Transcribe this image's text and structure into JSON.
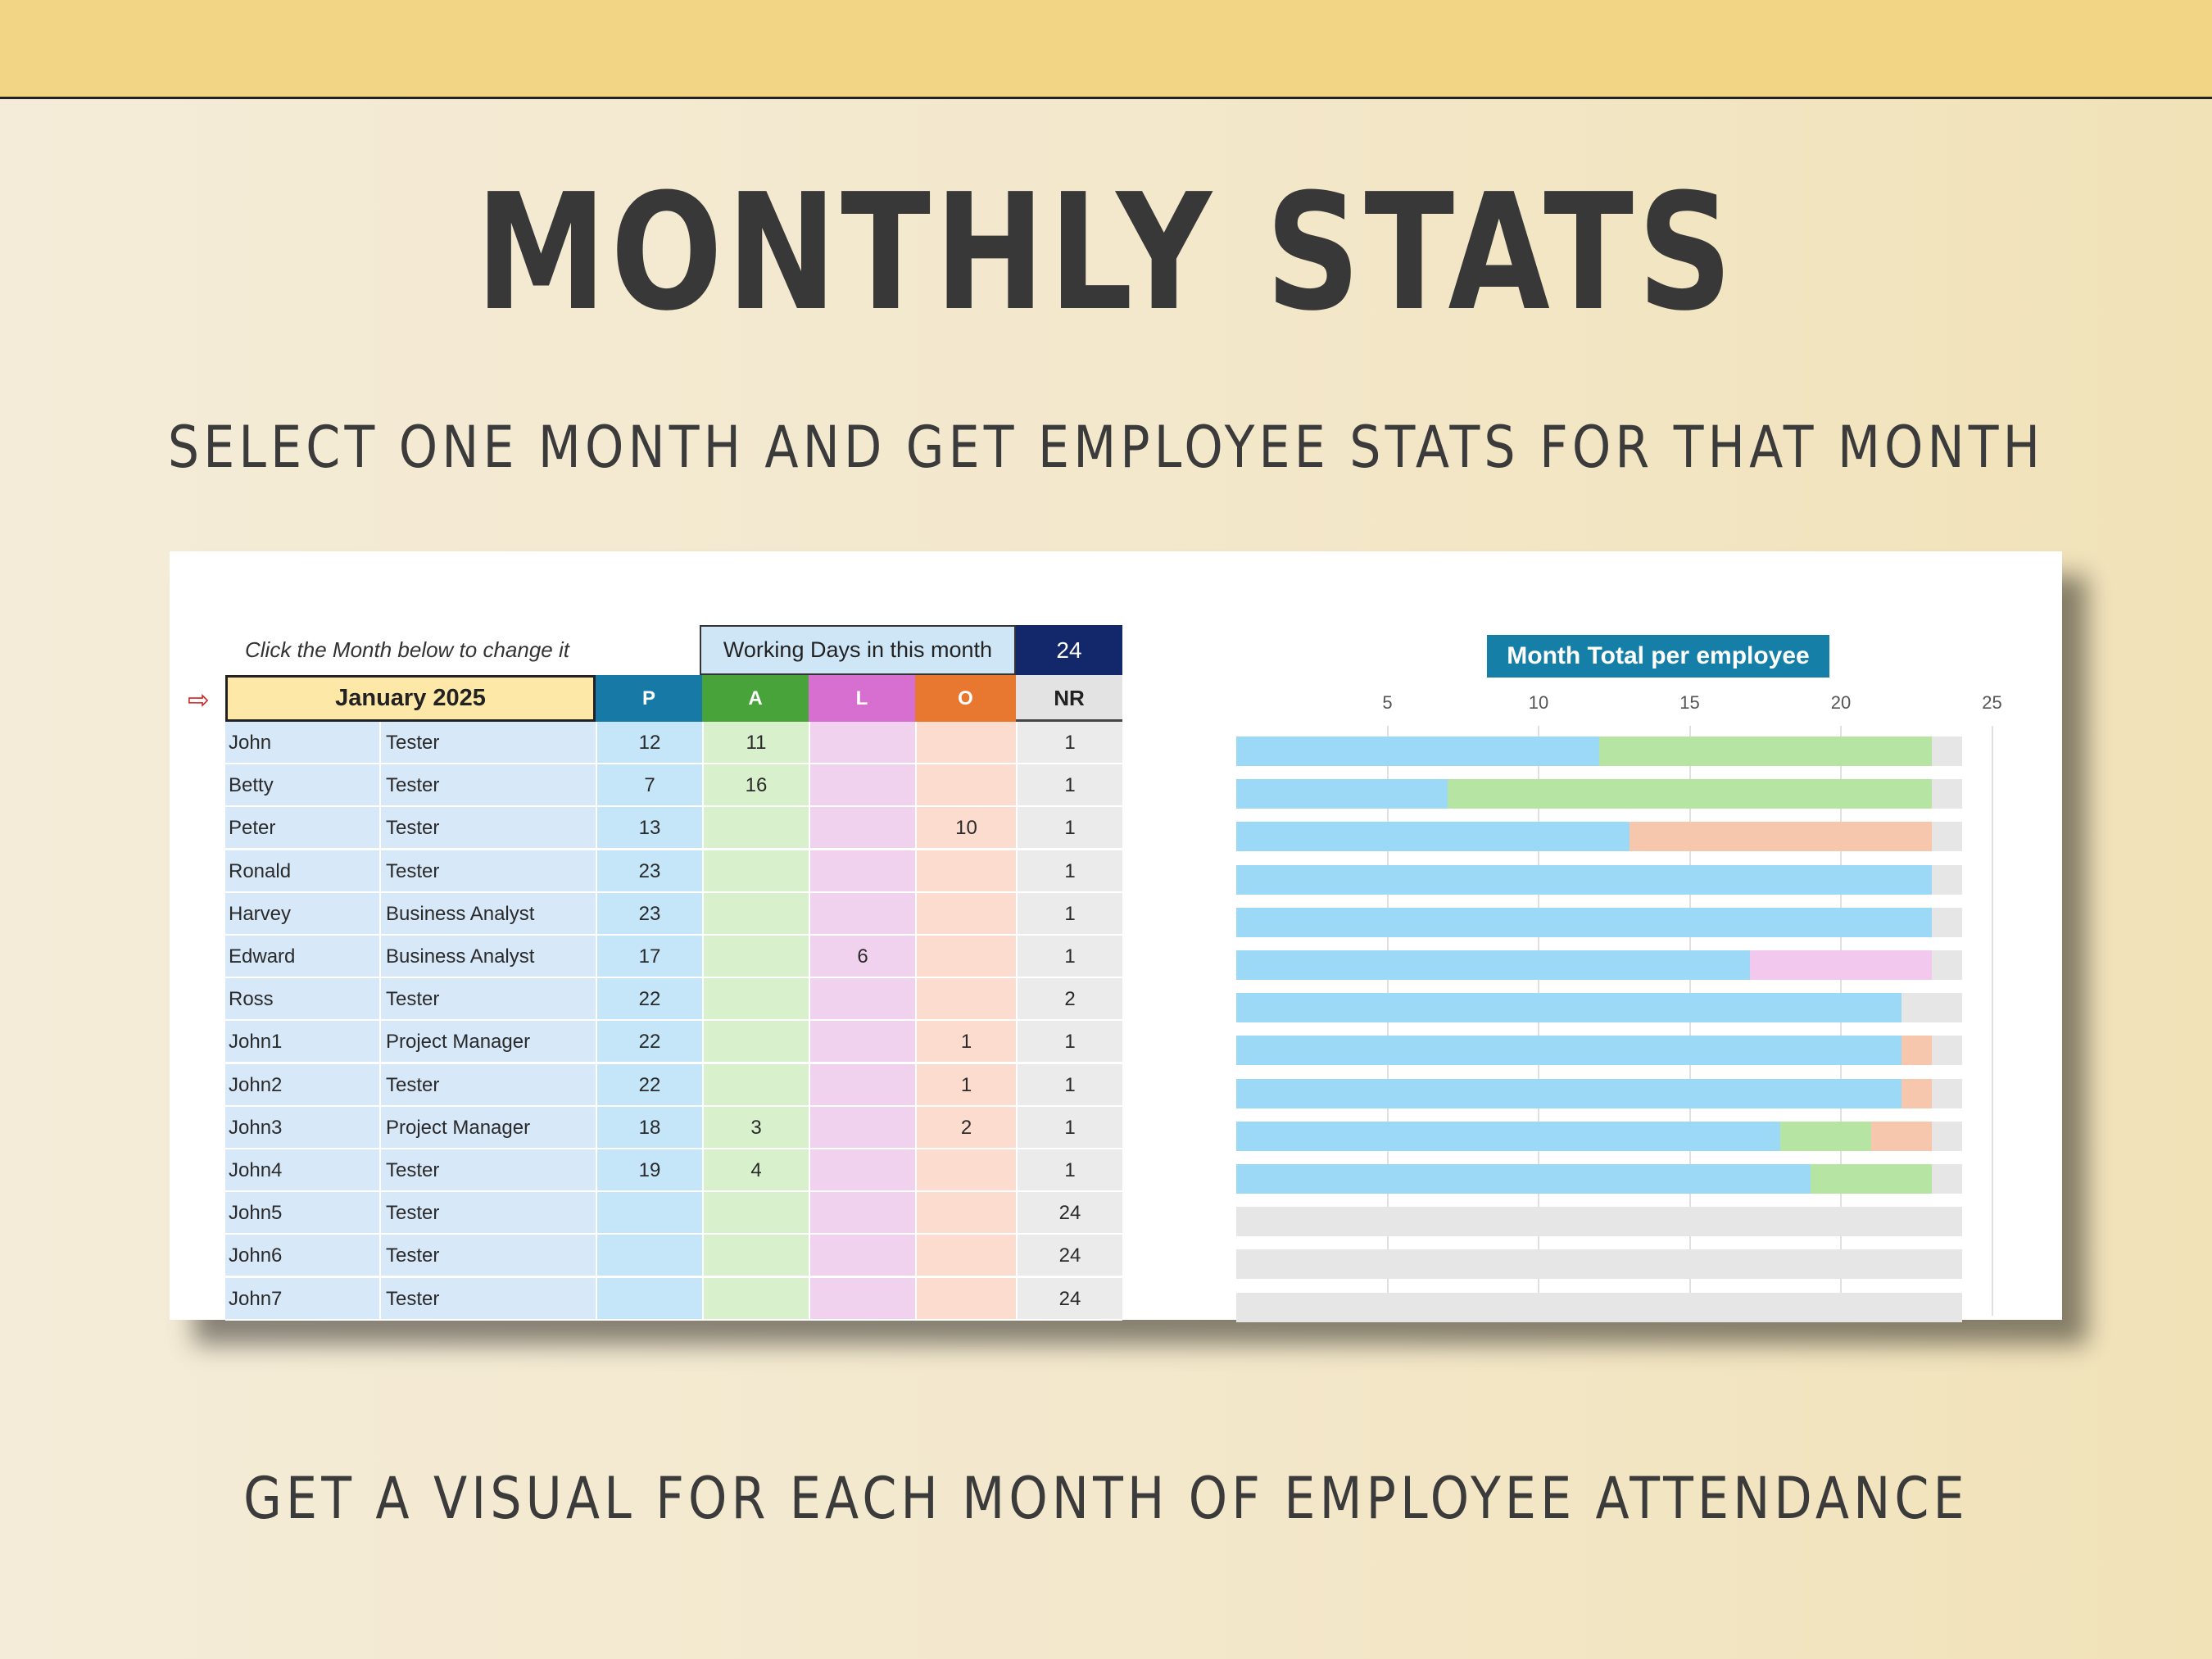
{
  "header": {
    "title": "MONTHLY STATS",
    "subtitle": "SELECT ONE MONTH AND GET EMPLOYEE STATS FOR THAT MONTH",
    "footer": "GET A VISUAL FOR EACH MONTH OF EMPLOYEE ATTENDANCE"
  },
  "sheet": {
    "hint": "Click the Month below to change it",
    "working_days_label": "Working Days in this month",
    "working_days_value": "24",
    "arrow": "⇨",
    "month": "January 2025",
    "columns": [
      "P",
      "A",
      "L",
      "O",
      "NR"
    ],
    "column_colors": [
      "#1679a6",
      "#49a33b",
      "#d66fcf",
      "#e8772f",
      "#e3e3e3"
    ],
    "rows": [
      {
        "name": "John",
        "role": "Tester",
        "p": "12",
        "a": "11",
        "l": "",
        "o": "",
        "nr": "1"
      },
      {
        "name": "Betty",
        "role": "Tester",
        "p": "7",
        "a": "16",
        "l": "",
        "o": "",
        "nr": "1"
      },
      {
        "name": "Peter",
        "role": "Tester",
        "p": "13",
        "a": "",
        "l": "",
        "o": "10",
        "nr": "1"
      },
      {
        "name": "Ronald",
        "role": "Tester",
        "p": "23",
        "a": "",
        "l": "",
        "o": "",
        "nr": "1"
      },
      {
        "name": "Harvey",
        "role": "Business Analyst",
        "p": "23",
        "a": "",
        "l": "",
        "o": "",
        "nr": "1"
      },
      {
        "name": "Edward",
        "role": "Business Analyst",
        "p": "17",
        "a": "",
        "l": "6",
        "o": "",
        "nr": "1"
      },
      {
        "name": "Ross",
        "role": "Tester",
        "p": "22",
        "a": "",
        "l": "",
        "o": "",
        "nr": "2"
      },
      {
        "name": "John1",
        "role": "Project Manager",
        "p": "22",
        "a": "",
        "l": "",
        "o": "1",
        "nr": "1"
      },
      {
        "name": "John2",
        "role": "Tester",
        "p": "22",
        "a": "",
        "l": "",
        "o": "1",
        "nr": "1"
      },
      {
        "name": "John3",
        "role": "Project Manager",
        "p": "18",
        "a": "3",
        "l": "",
        "o": "2",
        "nr": "1"
      },
      {
        "name": "John4",
        "role": "Tester",
        "p": "19",
        "a": "4",
        "l": "",
        "o": "",
        "nr": "1"
      },
      {
        "name": "John5",
        "role": "Tester",
        "p": "",
        "a": "",
        "l": "",
        "o": "",
        "nr": "24"
      },
      {
        "name": "John6",
        "role": "Tester",
        "p": "",
        "a": "",
        "l": "",
        "o": "",
        "nr": "24"
      },
      {
        "name": "John7",
        "role": "Tester",
        "p": "",
        "a": "",
        "l": "",
        "o": "",
        "nr": "24"
      }
    ]
  },
  "chart_data": {
    "type": "bar",
    "orientation": "horizontal",
    "stacked": true,
    "title": "Month Total per employee",
    "xlabel": "",
    "ylabel": "",
    "xlim": [
      0,
      25
    ],
    "ticks": [
      5,
      10,
      15,
      20,
      25
    ],
    "grid": true,
    "categories": [
      "John",
      "Betty",
      "Peter",
      "Ronald",
      "Harvey",
      "Edward",
      "Ross",
      "John1",
      "John2",
      "John3",
      "John4",
      "John5",
      "John6",
      "John7"
    ],
    "series": [
      {
        "values": [
          12,
          7,
          13,
          23,
          23,
          17,
          22,
          22,
          22,
          18,
          19,
          0,
          0,
          0
        ],
        "color": "#9bd9f6"
      },
      {
        "values": [
          11,
          16,
          0,
          0,
          0,
          0,
          0,
          0,
          0,
          3,
          4,
          0,
          0,
          0
        ],
        "color": "#b6e4a3"
      },
      {
        "values": [
          0,
          0,
          0,
          0,
          0,
          6,
          0,
          0,
          0,
          0,
          0,
          0,
          0,
          0
        ],
        "color": "#f2c8ee"
      },
      {
        "values": [
          0,
          0,
          10,
          0,
          0,
          0,
          0,
          1,
          1,
          2,
          0,
          0,
          0,
          0
        ],
        "color": "#f6c6ad"
      },
      {
        "values": [
          1,
          1,
          1,
          1,
          1,
          1,
          2,
          1,
          1,
          1,
          1,
          24,
          24,
          24
        ],
        "color": "#e6e6e6"
      }
    ]
  }
}
